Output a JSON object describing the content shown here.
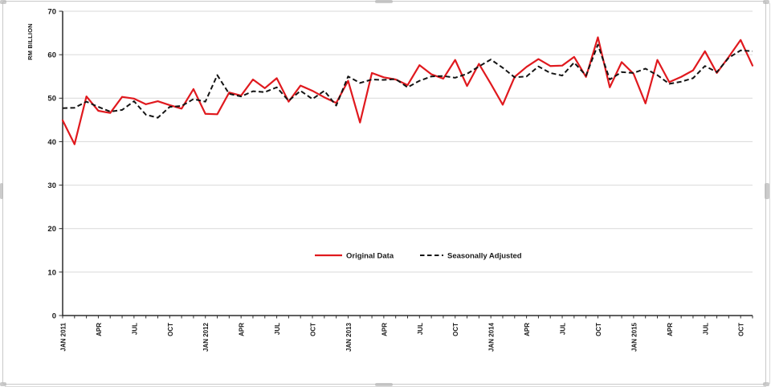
{
  "colors": {
    "background": "#ffffff",
    "gridline": "#d9d9d9",
    "axis": "#2b2b2b",
    "text": "#1a1a1a",
    "frame": "#c9c9c9",
    "handle": "#b5b5b5",
    "original_data_red": "#e0191e",
    "seasonally_adjusted_black": "#141414"
  },
  "chart_data": {
    "type": "line",
    "title": "",
    "grid": "horizontal",
    "y_axis": {
      "label": "RM BILLION",
      "min": 0,
      "max": 70,
      "step": 10,
      "tick_labels": [
        "0",
        "10",
        "20",
        "30",
        "40",
        "50",
        "60",
        "70"
      ]
    },
    "x_axis": {
      "total_monthly_points": 59,
      "label_every_n_months": 3,
      "visible_tick_labels": [
        "JAN 2011",
        "APR",
        "JUL",
        "OCT",
        "JAN 2012",
        "APR",
        "JUL",
        "OCT",
        "JAN 2013",
        "APR",
        "JUL",
        "OCT",
        "JAN 2014",
        "APR",
        "JUL",
        "OCT",
        "JAN 2015",
        "APR",
        "JUL",
        "OCT"
      ]
    },
    "legend": {
      "position": "inside-center-lower",
      "entries": [
        "Original Data",
        "Seasonally Adjusted"
      ]
    },
    "series": [
      {
        "name": "Original Data",
        "style": "solid",
        "color": "#e0191e",
        "values": [
          44.9,
          39.4,
          50.4,
          47.1,
          46.6,
          50.3,
          49.9,
          48.6,
          49.3,
          48.4,
          47.6,
          52.1,
          46.4,
          46.3,
          51.3,
          50.6,
          54.3,
          52.3,
          54.6,
          49.2,
          52.9,
          51.7,
          50.2,
          48.9,
          54.0,
          44.4,
          55.8,
          54.8,
          54.3,
          53.0,
          57.6,
          55.5,
          54.5,
          58.8,
          52.8,
          57.9,
          53.3,
          48.5,
          54.9,
          57.2,
          59.0,
          57.4,
          57.5,
          59.5,
          54.9,
          64.0,
          52.5,
          58.3,
          55.6,
          48.8,
          58.8,
          53.7,
          54.9,
          56.4,
          60.8,
          55.8,
          59.5,
          63.4,
          57.5
        ]
      },
      {
        "name": "Seasonally Adjusted",
        "style": "dashed",
        "color": "#141414",
        "values": [
          47.7,
          47.8,
          49.2,
          48.0,
          46.9,
          47.3,
          49.3,
          46.2,
          45.5,
          48.0,
          48.2,
          49.8,
          49.2,
          55.3,
          51.0,
          50.4,
          51.6,
          51.4,
          52.5,
          49.4,
          51.7,
          49.8,
          51.7,
          48.3,
          55.0,
          53.5,
          54.3,
          54.2,
          54.4,
          52.5,
          54.0,
          55.0,
          55.1,
          54.7,
          55.6,
          57.3,
          58.9,
          57.0,
          54.8,
          55.0,
          57.3,
          55.8,
          55.2,
          58.2,
          55.2,
          62.3,
          54.3,
          56.0,
          55.8,
          56.8,
          55.3,
          53.3,
          53.8,
          54.6,
          57.4,
          56.0,
          59.3,
          61.0,
          60.8
        ]
      }
    ]
  }
}
